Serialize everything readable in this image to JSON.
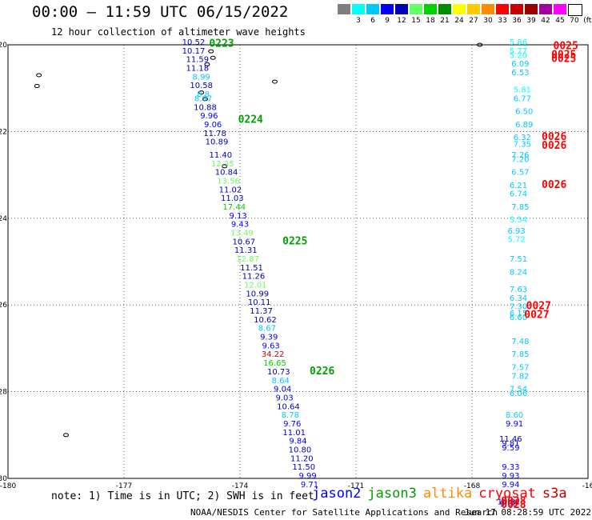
{
  "header": {
    "title": "00:00 – 11:59 UTC 06/15/2022",
    "subtitle": "12 hour collection of altimeter wave heights"
  },
  "colorbar": {
    "unit": "(ft)",
    "steps": [
      {
        "label": "",
        "color": "#7f7f7f"
      },
      {
        "label": "3",
        "color": "#00ffff"
      },
      {
        "label": "6",
        "color": "#00c8ff"
      },
      {
        "label": "9",
        "color": "#0000ff"
      },
      {
        "label": "12",
        "color": "#0000b4"
      },
      {
        "label": "15",
        "color": "#64ff64"
      },
      {
        "label": "18",
        "color": "#00d200"
      },
      {
        "label": "21",
        "color": "#008c00"
      },
      {
        "label": "24",
        "color": "#ffff00"
      },
      {
        "label": "27",
        "color": "#ffc800"
      },
      {
        "label": "30",
        "color": "#ff8c00"
      },
      {
        "label": "33",
        "color": "#ff0000"
      },
      {
        "label": "36",
        "color": "#c80000"
      },
      {
        "label": "39",
        "color": "#960000"
      },
      {
        "label": "42",
        "color": "#a000a0"
      },
      {
        "label": "45",
        "color": "#ff00ff"
      },
      {
        "label": "70",
        "color": "#ffffff"
      }
    ]
  },
  "axes": {
    "lon_ticks": [
      "-180",
      "-177",
      "-174",
      "-171",
      "-168",
      "-16"
    ],
    "lat_ticks": [
      "-20",
      "-22",
      "-24",
      "-26",
      "-28",
      "-30"
    ]
  },
  "legend": [
    {
      "label": "jason2",
      "color": "#0000ff"
    },
    {
      "label": "jason3",
      "color": "#00a000"
    },
    {
      "label": "altika",
      "color": "#ff8c00"
    },
    {
      "label": "cryosat",
      "color": "#ff0000"
    },
    {
      "label": "s3a",
      "color": "#c00000"
    }
  ],
  "note": "note: 1) Time is in UTC; 2) SWH is in feet",
  "footer": {
    "credit": "NOAA/NESDIS Center for Satellite Applications and Research",
    "timestamp": "Jun 17 08:28:59 UTC 2022"
  },
  "tracks": [
    {
      "name": "track-a",
      "points": [
        {
          "lon": -175.2,
          "lat": -20.0,
          "v": "10.52",
          "c": "#0000b4"
        },
        {
          "lon": -175.2,
          "lat": -20.2,
          "v": "10.17",
          "c": "#0000b4"
        },
        {
          "lon": -175.1,
          "lat": -20.4,
          "v": "11.59",
          "c": "#0000b4"
        },
        {
          "lon": -175.1,
          "lat": -20.6,
          "v": "11.18",
          "c": "#0000b4"
        },
        {
          "lon": -175.0,
          "lat": -20.8,
          "v": "8.99",
          "c": "#00c8ff"
        },
        {
          "lon": -175.0,
          "lat": -21.0,
          "v": "10.58",
          "c": "#0000b4"
        },
        {
          "lon": -174.95,
          "lat": -21.2,
          "v": "8.8",
          "c": "#00c8ff"
        },
        {
          "lon": -174.95,
          "lat": -21.3,
          "v": "8.97",
          "c": "#00c8ff"
        },
        {
          "lon": -174.9,
          "lat": -21.5,
          "v": "10.88",
          "c": "#0000b4"
        },
        {
          "lon": -174.8,
          "lat": -21.7,
          "v": "9.96",
          "c": "#0000ff"
        },
        {
          "lon": -174.7,
          "lat": -21.9,
          "v": "9.06",
          "c": "#0000ff"
        },
        {
          "lon": -174.65,
          "lat": -22.1,
          "v": "11.78",
          "c": "#0000b4"
        },
        {
          "lon": -174.6,
          "lat": -22.3,
          "v": "10.89",
          "c": "#0000b4"
        },
        {
          "lon": -174.5,
          "lat": -22.6,
          "v": "11.40",
          "c": "#0000b4"
        },
        {
          "lon": -174.45,
          "lat": -22.8,
          "v": "12.35",
          "c": "#64ff64"
        },
        {
          "lon": -174.35,
          "lat": -23.0,
          "v": "10.84",
          "c": "#0000b4"
        },
        {
          "lon": -174.3,
          "lat": -23.2,
          "v": "13.56",
          "c": "#64ff64"
        },
        {
          "lon": -174.25,
          "lat": -23.4,
          "v": "11.02",
          "c": "#0000b4"
        },
        {
          "lon": -174.2,
          "lat": -23.6,
          "v": "11.03",
          "c": "#0000b4"
        },
        {
          "lon": -174.15,
          "lat": -23.8,
          "v": "17.44",
          "c": "#00d200"
        },
        {
          "lon": -174.05,
          "lat": -24.0,
          "v": "9.13",
          "c": "#0000ff"
        },
        {
          "lon": -174.0,
          "lat": -24.2,
          "v": "9.43",
          "c": "#0000ff"
        },
        {
          "lon": -173.95,
          "lat": -24.4,
          "v": "13.49",
          "c": "#64ff64"
        },
        {
          "lon": -173.9,
          "lat": -24.6,
          "v": "10.67",
          "c": "#0000b4"
        },
        {
          "lon": -173.85,
          "lat": -24.8,
          "v": "11.31",
          "c": "#0000b4"
        },
        {
          "lon": -173.8,
          "lat": -25.0,
          "v": "12.87",
          "c": "#64ff64"
        },
        {
          "lon": -173.7,
          "lat": -25.2,
          "v": "11.51",
          "c": "#0000b4"
        },
        {
          "lon": -173.65,
          "lat": -25.4,
          "v": "11.26",
          "c": "#0000b4"
        },
        {
          "lon": -173.6,
          "lat": -25.6,
          "v": "12.01",
          "c": "#64ff64"
        },
        {
          "lon": -173.55,
          "lat": -25.8,
          "v": "10.99",
          "c": "#0000b4"
        },
        {
          "lon": -173.5,
          "lat": -26.0,
          "v": "10.11",
          "c": "#0000b4"
        },
        {
          "lon": -173.45,
          "lat": -26.2,
          "v": "11.37",
          "c": "#0000b4"
        },
        {
          "lon": -173.35,
          "lat": -26.4,
          "v": "10.62",
          "c": "#0000b4"
        },
        {
          "lon": -173.3,
          "lat": -26.6,
          "v": "8.67",
          "c": "#00c8ff"
        },
        {
          "lon": -173.25,
          "lat": -26.8,
          "v": "9.39",
          "c": "#0000ff"
        },
        {
          "lon": -173.2,
          "lat": -27.0,
          "v": "9.63",
          "c": "#0000ff"
        },
        {
          "lon": -173.15,
          "lat": -27.2,
          "v": "34.22",
          "c": "#c80000"
        },
        {
          "lon": -173.1,
          "lat": -27.4,
          "v": "16.65",
          "c": "#00d200"
        },
        {
          "lon": -173.0,
          "lat": -27.6,
          "v": "10.73",
          "c": "#0000b4"
        },
        {
          "lon": -172.95,
          "lat": -27.8,
          "v": "8.64",
          "c": "#00c8ff"
        },
        {
          "lon": -172.9,
          "lat": -28.0,
          "v": "9.04",
          "c": "#0000ff"
        },
        {
          "lon": -172.85,
          "lat": -28.2,
          "v": "9.03",
          "c": "#0000ff"
        },
        {
          "lon": -172.75,
          "lat": -28.4,
          "v": "10.64",
          "c": "#0000b4"
        },
        {
          "lon": -172.7,
          "lat": -28.6,
          "v": "8.78",
          "c": "#00c8ff"
        },
        {
          "lon": -172.65,
          "lat": -28.8,
          "v": "9.76",
          "c": "#0000ff"
        },
        {
          "lon": -172.6,
          "lat": -29.0,
          "v": "11.01",
          "c": "#0000b4"
        },
        {
          "lon": -172.5,
          "lat": -29.2,
          "v": "9.84",
          "c": "#0000ff"
        },
        {
          "lon": -172.45,
          "lat": -29.4,
          "v": "10.80",
          "c": "#0000b4"
        },
        {
          "lon": -172.4,
          "lat": -29.6,
          "v": "11.20",
          "c": "#0000b4"
        },
        {
          "lon": -172.35,
          "lat": -29.8,
          "v": "11.50",
          "c": "#0000b4"
        },
        {
          "lon": -172.25,
          "lat": -30.0,
          "v": "9.99",
          "c": "#0000ff"
        },
        {
          "lon": -172.2,
          "lat": -30.2,
          "v": "9.71",
          "c": "#0000ff"
        }
      ]
    },
    {
      "name": "track-b",
      "points": [
        {
          "lon": -166.8,
          "lat": -20.0,
          "v": "5.86",
          "c": "#00ffff"
        },
        {
          "lon": -166.8,
          "lat": -20.2,
          "v": "5.77",
          "c": "#00ffff"
        },
        {
          "lon": -166.8,
          "lat": -20.3,
          "v": "5.20",
          "c": "#00ffff"
        },
        {
          "lon": -166.75,
          "lat": -20.5,
          "v": "6.09",
          "c": "#00c8ff"
        },
        {
          "lon": -166.75,
          "lat": -20.7,
          "v": "6.53",
          "c": "#00c8ff"
        },
        {
          "lon": -166.7,
          "lat": -21.1,
          "v": "5.81",
          "c": "#00ffff"
        },
        {
          "lon": -166.7,
          "lat": -21.3,
          "v": "6.77",
          "c": "#00c8ff"
        },
        {
          "lon": -166.65,
          "lat": -21.6,
          "v": "6.50",
          "c": "#00c8ff"
        },
        {
          "lon": -166.65,
          "lat": -21.9,
          "v": "6.89",
          "c": "#00c8ff"
        },
        {
          "lon": -166.7,
          "lat": -22.2,
          "v": "6.32",
          "c": "#00c8ff"
        },
        {
          "lon": -166.7,
          "lat": -22.35,
          "v": "7.35",
          "c": "#00c8ff"
        },
        {
          "lon": -166.75,
          "lat": -22.6,
          "v": "7.26",
          "c": "#00c8ff"
        },
        {
          "lon": -166.75,
          "lat": -22.7,
          "v": "7.20",
          "c": "#00c8ff"
        },
        {
          "lon": -166.75,
          "lat": -23.0,
          "v": "6.57",
          "c": "#00c8ff"
        },
        {
          "lon": -166.8,
          "lat": -23.3,
          "v": "6.21",
          "c": "#00c8ff"
        },
        {
          "lon": -166.8,
          "lat": -23.5,
          "v": "6.74",
          "c": "#00c8ff"
        },
        {
          "lon": -166.75,
          "lat": -23.8,
          "v": "7.85",
          "c": "#00c8ff"
        },
        {
          "lon": -166.8,
          "lat": -24.1,
          "v": "5.54",
          "c": "#00ffff"
        },
        {
          "lon": -166.85,
          "lat": -24.35,
          "v": "6.93",
          "c": "#00c8ff"
        },
        {
          "lon": -166.85,
          "lat": -24.55,
          "v": "5.72",
          "c": "#00ffff"
        },
        {
          "lon": -166.8,
          "lat": -25.0,
          "v": "7.51",
          "c": "#00c8ff"
        },
        {
          "lon": -166.8,
          "lat": -25.3,
          "v": "8.24",
          "c": "#00c8ff"
        },
        {
          "lon": -166.8,
          "lat": -25.7,
          "v": "7.63",
          "c": "#00c8ff"
        },
        {
          "lon": -166.8,
          "lat": -25.9,
          "v": "6.34",
          "c": "#00c8ff"
        },
        {
          "lon": -166.8,
          "lat": -26.1,
          "v": "7.30",
          "c": "#00c8ff"
        },
        {
          "lon": -166.8,
          "lat": -26.25,
          "v": "6.15",
          "c": "#00c8ff"
        },
        {
          "lon": -166.8,
          "lat": -26.35,
          "v": "6.60",
          "c": "#00c8ff"
        },
        {
          "lon": -166.75,
          "lat": -26.9,
          "v": "7.48",
          "c": "#00c8ff"
        },
        {
          "lon": -166.75,
          "lat": -27.2,
          "v": "7.85",
          "c": "#00c8ff"
        },
        {
          "lon": -166.75,
          "lat": -27.5,
          "v": "7.57",
          "c": "#00c8ff"
        },
        {
          "lon": -166.75,
          "lat": -27.7,
          "v": "7.82",
          "c": "#00c8ff"
        },
        {
          "lon": -166.8,
          "lat": -28.0,
          "v": "7.54",
          "c": "#00c8ff"
        },
        {
          "lon": -166.8,
          "lat": -28.1,
          "v": "6.06",
          "c": "#00c8ff"
        },
        {
          "lon": -166.9,
          "lat": -28.6,
          "v": "8.60",
          "c": "#00c8ff"
        },
        {
          "lon": -166.9,
          "lat": -28.8,
          "v": "9.91",
          "c": "#0000ff"
        },
        {
          "lon": -167.0,
          "lat": -29.15,
          "v": "11.46",
          "c": "#0000b4"
        },
        {
          "lon": -167.0,
          "lat": -29.25,
          "v": "9.81",
          "c": "#0000ff"
        },
        {
          "lon": -167.0,
          "lat": -29.35,
          "v": "9.59",
          "c": "#0000ff"
        },
        {
          "lon": -167.0,
          "lat": -29.8,
          "v": "9.33",
          "c": "#0000ff"
        },
        {
          "lon": -167.0,
          "lat": -30.0,
          "v": "9.93",
          "c": "#0000ff"
        },
        {
          "lon": -167.0,
          "lat": -30.2,
          "v": "9.94",
          "c": "#0000ff"
        },
        {
          "lon": -167.05,
          "lat": -30.6,
          "v": "10.82",
          "c": "#0000b4"
        },
        {
          "lon": -167.05,
          "lat": -30.65,
          "v": "9.88",
          "c": "#0000ff"
        }
      ]
    }
  ],
  "times": [
    {
      "label": "0223",
      "c": "#00a000",
      "lon": -174.8,
      "lat": -20.05
    },
    {
      "label": "0224",
      "c": "#00a000",
      "lon": -174.05,
      "lat": -21.8
    },
    {
      "label": "0225",
      "c": "#00a000",
      "lon": -172.9,
      "lat": -24.6
    },
    {
      "label": "0226",
      "c": "#00a000",
      "lon": -172.2,
      "lat": -27.6
    },
    {
      "label": "0025",
      "c": "#ff0000",
      "lon": -165.9,
      "lat": -20.1
    },
    {
      "label": "0025",
      "c": "#ff0000",
      "lon": -165.95,
      "lat": -20.3
    },
    {
      "label": "0025",
      "c": "#ff0000",
      "lon": -165.95,
      "lat": -20.4
    },
    {
      "label": "0026",
      "c": "#ff0000",
      "lon": -166.2,
      "lat": -22.2
    },
    {
      "label": "0026",
      "c": "#ff0000",
      "lon": -166.2,
      "lat": -22.4
    },
    {
      "label": "0026",
      "c": "#ff0000",
      "lon": -166.2,
      "lat": -23.3
    },
    {
      "label": "0027",
      "c": "#ff0000",
      "lon": -166.6,
      "lat": -26.1
    },
    {
      "label": "0027",
      "c": "#ff0000",
      "lon": -166.65,
      "lat": -26.3
    },
    {
      "label": "0028",
      "c": "#ff0000",
      "lon": -167.25,
      "lat": -30.6
    },
    {
      "label": "0028",
      "c": "#ff0000",
      "lon": -167.25,
      "lat": -30.68
    }
  ]
}
